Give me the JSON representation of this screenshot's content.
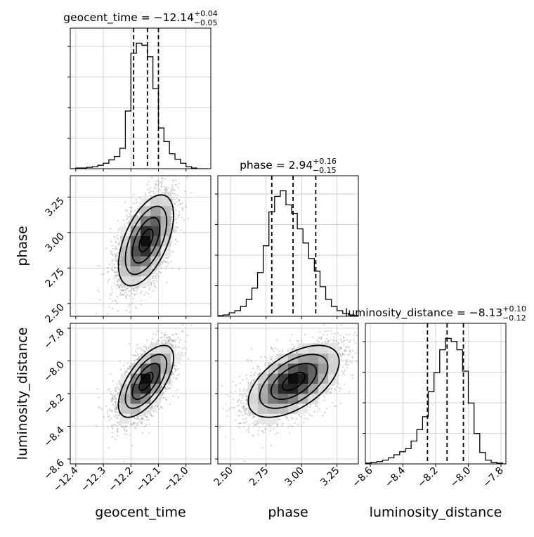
{
  "chart_data": {
    "type": "corner",
    "parameters": [
      "geocent_time",
      "phase",
      "luminosity_distance"
    ],
    "axis_labels": {
      "x": [
        "geocent_time",
        "phase",
        "luminosity_distance"
      ],
      "y": [
        "phase",
        "luminosity_distance"
      ]
    },
    "summaries": [
      {
        "param": "geocent_time",
        "prefix": "geocent_time = ",
        "median": "−12.14",
        "plus": "+0.04",
        "minus": "−0.05",
        "q": [
          -12.19,
          -12.14,
          -12.1
        ]
      },
      {
        "param": "phase",
        "prefix": "phase = ",
        "median": "2.94",
        "plus": "+0.16",
        "minus": "−0.15",
        "q": [
          2.79,
          2.94,
          3.1
        ]
      },
      {
        "param": "luminosity_distance",
        "prefix": "luminosity_distance = ",
        "median": "−8.13",
        "plus": "+0.10",
        "minus": "−0.12",
        "q": [
          -8.25,
          -8.13,
          -8.03
        ]
      }
    ],
    "ranges": {
      "geocent_time": [
        -12.42,
        -11.91
      ],
      "phase": [
        2.41,
        3.4
      ],
      "luminosity_distance": [
        -8.63,
        -7.77
      ]
    },
    "ticks": {
      "geocent_time": [
        -12.4,
        -12.3,
        -12.2,
        -12.1,
        -12.0
      ],
      "phase": [
        2.5,
        2.75,
        3.0,
        3.25
      ],
      "luminosity_distance": [
        -8.6,
        -8.4,
        -8.2,
        -8.0,
        -7.8
      ]
    },
    "tick_labels": {
      "geocent_time": [
        "−12.4",
        "−12.3",
        "−12.2",
        "−12.1",
        "−12.0"
      ],
      "phase": [
        "2.50",
        "2.75",
        "3.00",
        "3.25"
      ],
      "luminosity_distance": [
        "−8.6",
        "−8.4",
        "−8.2",
        "−8.0",
        "−7.8"
      ]
    },
    "histograms": {
      "geocent_time": {
        "edges": [
          -12.42,
          -12.4,
          -12.38,
          -12.36,
          -12.34,
          -12.32,
          -12.3,
          -12.28,
          -12.26,
          -12.24,
          -12.22,
          -12.2,
          -12.18,
          -12.16,
          -12.14,
          -12.12,
          -12.1,
          -12.08,
          -12.06,
          -12.04,
          -12.02,
          -12.0,
          -11.98,
          -11.96,
          -11.94,
          -11.92
        ],
        "counts": [
          0,
          1,
          1,
          2,
          3,
          5,
          8,
          13,
          18,
          30,
          85,
          170,
          185,
          182,
          165,
          118,
          60,
          40,
          22,
          14,
          8,
          3,
          1,
          0,
          0
        ]
      },
      "phase": {
        "edges": [
          2.41,
          2.45,
          2.49,
          2.53,
          2.57,
          2.61,
          2.65,
          2.69,
          2.73,
          2.77,
          2.81,
          2.85,
          2.89,
          2.93,
          2.97,
          3.01,
          3.05,
          3.09,
          3.13,
          3.17,
          3.21,
          3.25,
          3.29,
          3.33,
          3.37,
          3.41
        ],
        "counts": [
          1,
          2,
          5,
          8,
          14,
          24,
          40,
          62,
          100,
          148,
          170,
          178,
          158,
          146,
          124,
          104,
          82,
          64,
          42,
          24,
          14,
          8,
          4,
          2,
          1
        ]
      },
      "luminosity_distance": {
        "edges": [
          -8.63,
          -8.595,
          -8.56,
          -8.525,
          -8.49,
          -8.455,
          -8.42,
          -8.385,
          -8.35,
          -8.315,
          -8.28,
          -8.245,
          -8.21,
          -8.175,
          -8.14,
          -8.105,
          -8.07,
          -8.035,
          -8.0,
          -7.965,
          -7.93,
          -7.895,
          -7.86,
          -7.825,
          -7.79,
          -7.755
        ],
        "counts": [
          1,
          2,
          3,
          5,
          8,
          12,
          16,
          20,
          30,
          45,
          62,
          95,
          120,
          150,
          165,
          161,
          150,
          122,
          80,
          40,
          15,
          5,
          2,
          1,
          0
        ]
      }
    },
    "samples_2d": {
      "means": [
        -12.145,
        2.945,
        -8.125
      ],
      "sigmas": [
        0.05,
        0.16,
        0.11
      ],
      "correlations": {
        "0-1": 0.55,
        "0-2": 0.65,
        "1-2": 0.55
      },
      "count": 4000
    },
    "contour_levels_sigma": [
      0.5,
      1.0,
      1.5,
      2.0
    ],
    "colors": {
      "hist": "#000000",
      "points": "#999999",
      "density": "#000000",
      "grid": "#c8c8c8"
    }
  }
}
